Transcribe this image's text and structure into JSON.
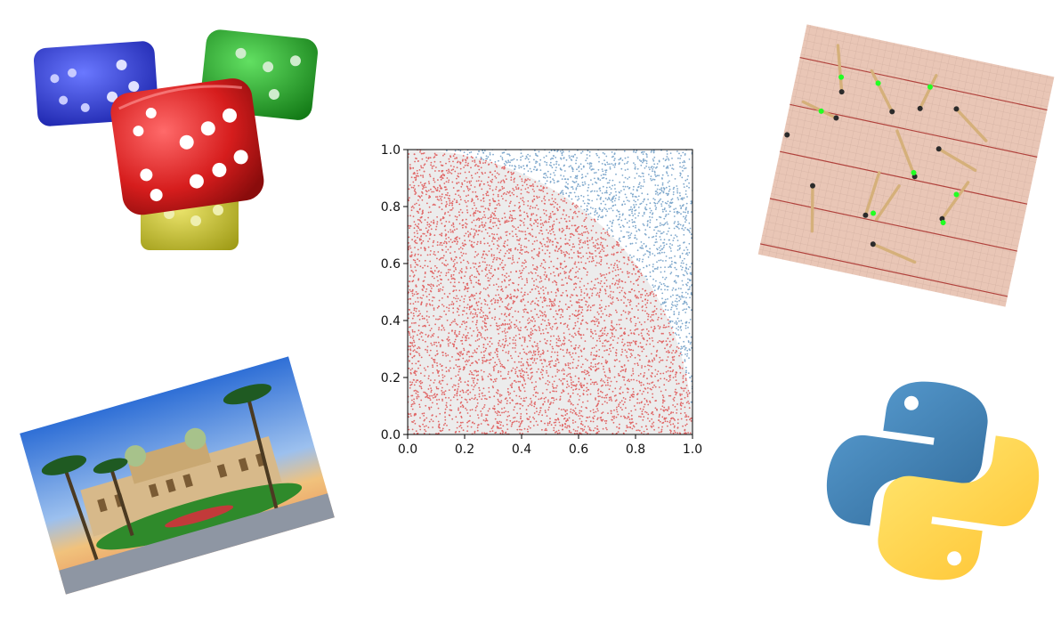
{
  "colors": {
    "inside": "#e06666",
    "outside": "#7fa8cc",
    "quarter_circle_fill": "#ececec",
    "python_blue": "#3b72a6",
    "python_yellow": "#f5cc42",
    "die_red": "#d62020",
    "die_blue": "#2030c8",
    "die_green": "#1e9a22",
    "die_yellow": "#c7c22a"
  },
  "decor": {
    "dice_image": "dice-icon",
    "buffon_image": "matches-on-grid-icon",
    "casino_image": "monte-carlo-casino-photo",
    "python_logo": "python-logo-icon"
  },
  "chart_data": {
    "type": "scatter",
    "title": "",
    "xlabel": "",
    "ylabel": "",
    "xlim": [
      0.0,
      1.0
    ],
    "ylim": [
      0.0,
      1.0
    ],
    "xticks": [
      "0.0",
      "0.2",
      "0.4",
      "0.6",
      "0.8",
      "1.0"
    ],
    "yticks": [
      "0.0",
      "0.2",
      "0.4",
      "0.6",
      "0.8",
      "1.0"
    ],
    "grid": false,
    "legend": "none",
    "region": "quarter circle x^2 + y^2 <= 1",
    "points_count": 6000,
    "series": [
      {
        "category": "inside-quarter-circle",
        "color": "#e06666"
      },
      {
        "category": "outside-quarter-circle",
        "color": "#7fa8cc"
      }
    ]
  }
}
